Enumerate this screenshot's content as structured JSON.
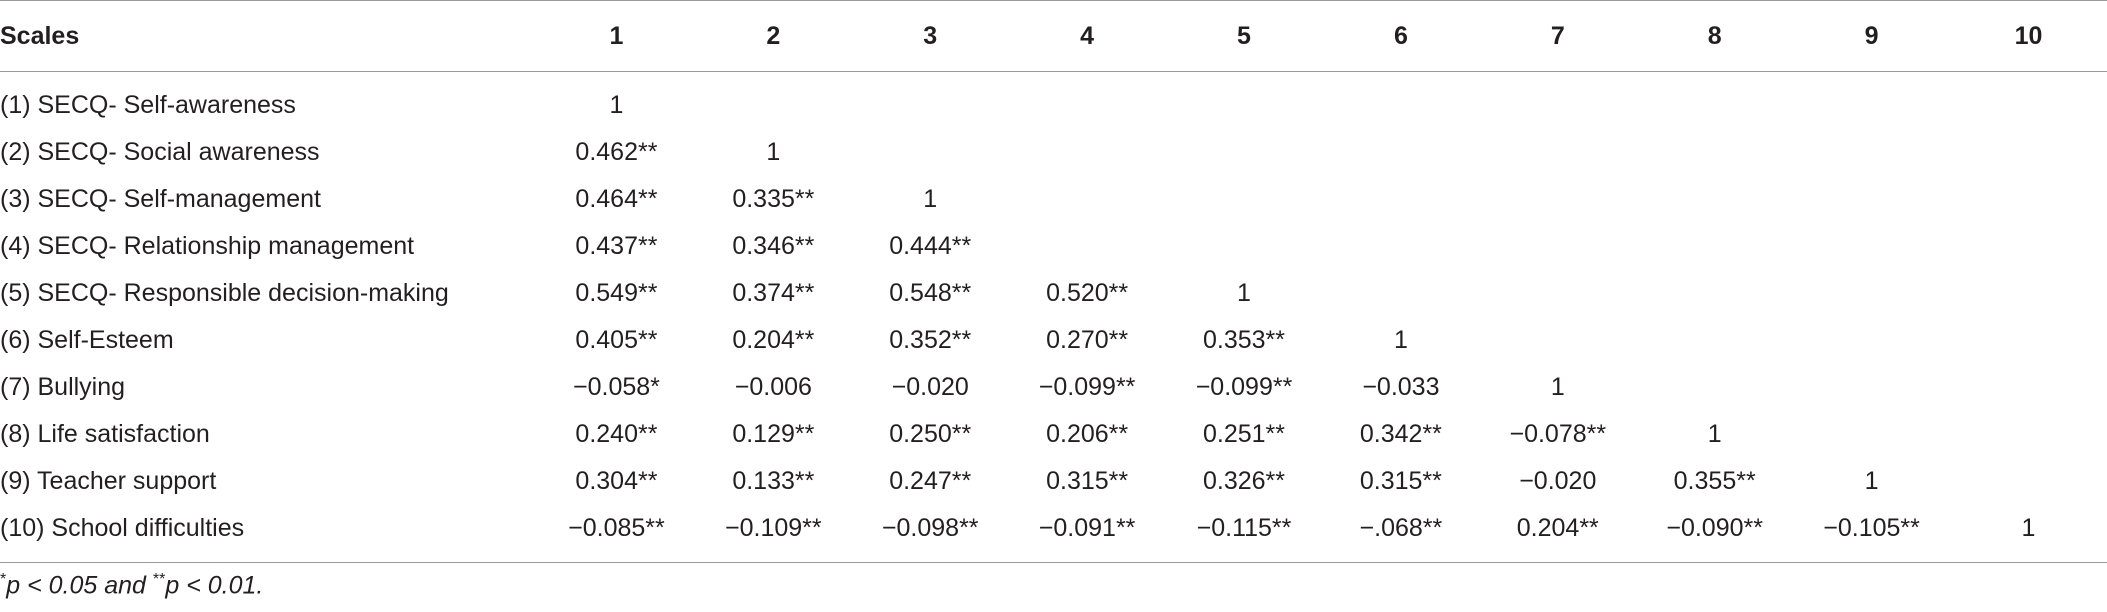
{
  "table": {
    "header": [
      "Scales",
      "1",
      "2",
      "3",
      "4",
      "5",
      "6",
      "7",
      "8",
      "9",
      "10"
    ],
    "rows": [
      [
        "(1) SECQ- Self-awareness",
        "1"
      ],
      [
        "(2) SECQ- Social awareness",
        "0.462**",
        "1"
      ],
      [
        "(3) SECQ- Self-management",
        "0.464**",
        "0.335**",
        "1"
      ],
      [
        "(4) SECQ- Relationship management",
        "0.437**",
        "0.346**",
        "0.444**"
      ],
      [
        "(5) SECQ- Responsible decision-making",
        "0.549**",
        "0.374**",
        "0.548**",
        "0.520**",
        "1"
      ],
      [
        "(6) Self-Esteem",
        "0.405**",
        "0.204**",
        "0.352**",
        "0.270**",
        "0.353**",
        "1"
      ],
      [
        "(7) Bullying",
        "−0.058*",
        "−0.006",
        "−0.020",
        "−0.099**",
        "−0.099**",
        "−0.033",
        "1"
      ],
      [
        "(8) Life satisfaction",
        "0.240**",
        "0.129**",
        "0.250**",
        "0.206**",
        "0.251**",
        "0.342**",
        "−0.078**",
        "1"
      ],
      [
        "(9) Teacher support",
        "0.304**",
        "0.133**",
        "0.247**",
        "0.315**",
        "0.326**",
        "0.315**",
        "−0.020",
        "0.355**",
        "1"
      ],
      [
        "(10) School difficulties",
        "−0.085**",
        "−0.109**",
        "−0.098**",
        "−0.091**",
        "−0.115**",
        "−.068**",
        "0.204**",
        "−0.090**",
        "−0.105**",
        "1"
      ]
    ]
  },
  "footnote": [
    "*",
    "p < 0.05 and ",
    "**",
    "p < 0.01."
  ]
}
